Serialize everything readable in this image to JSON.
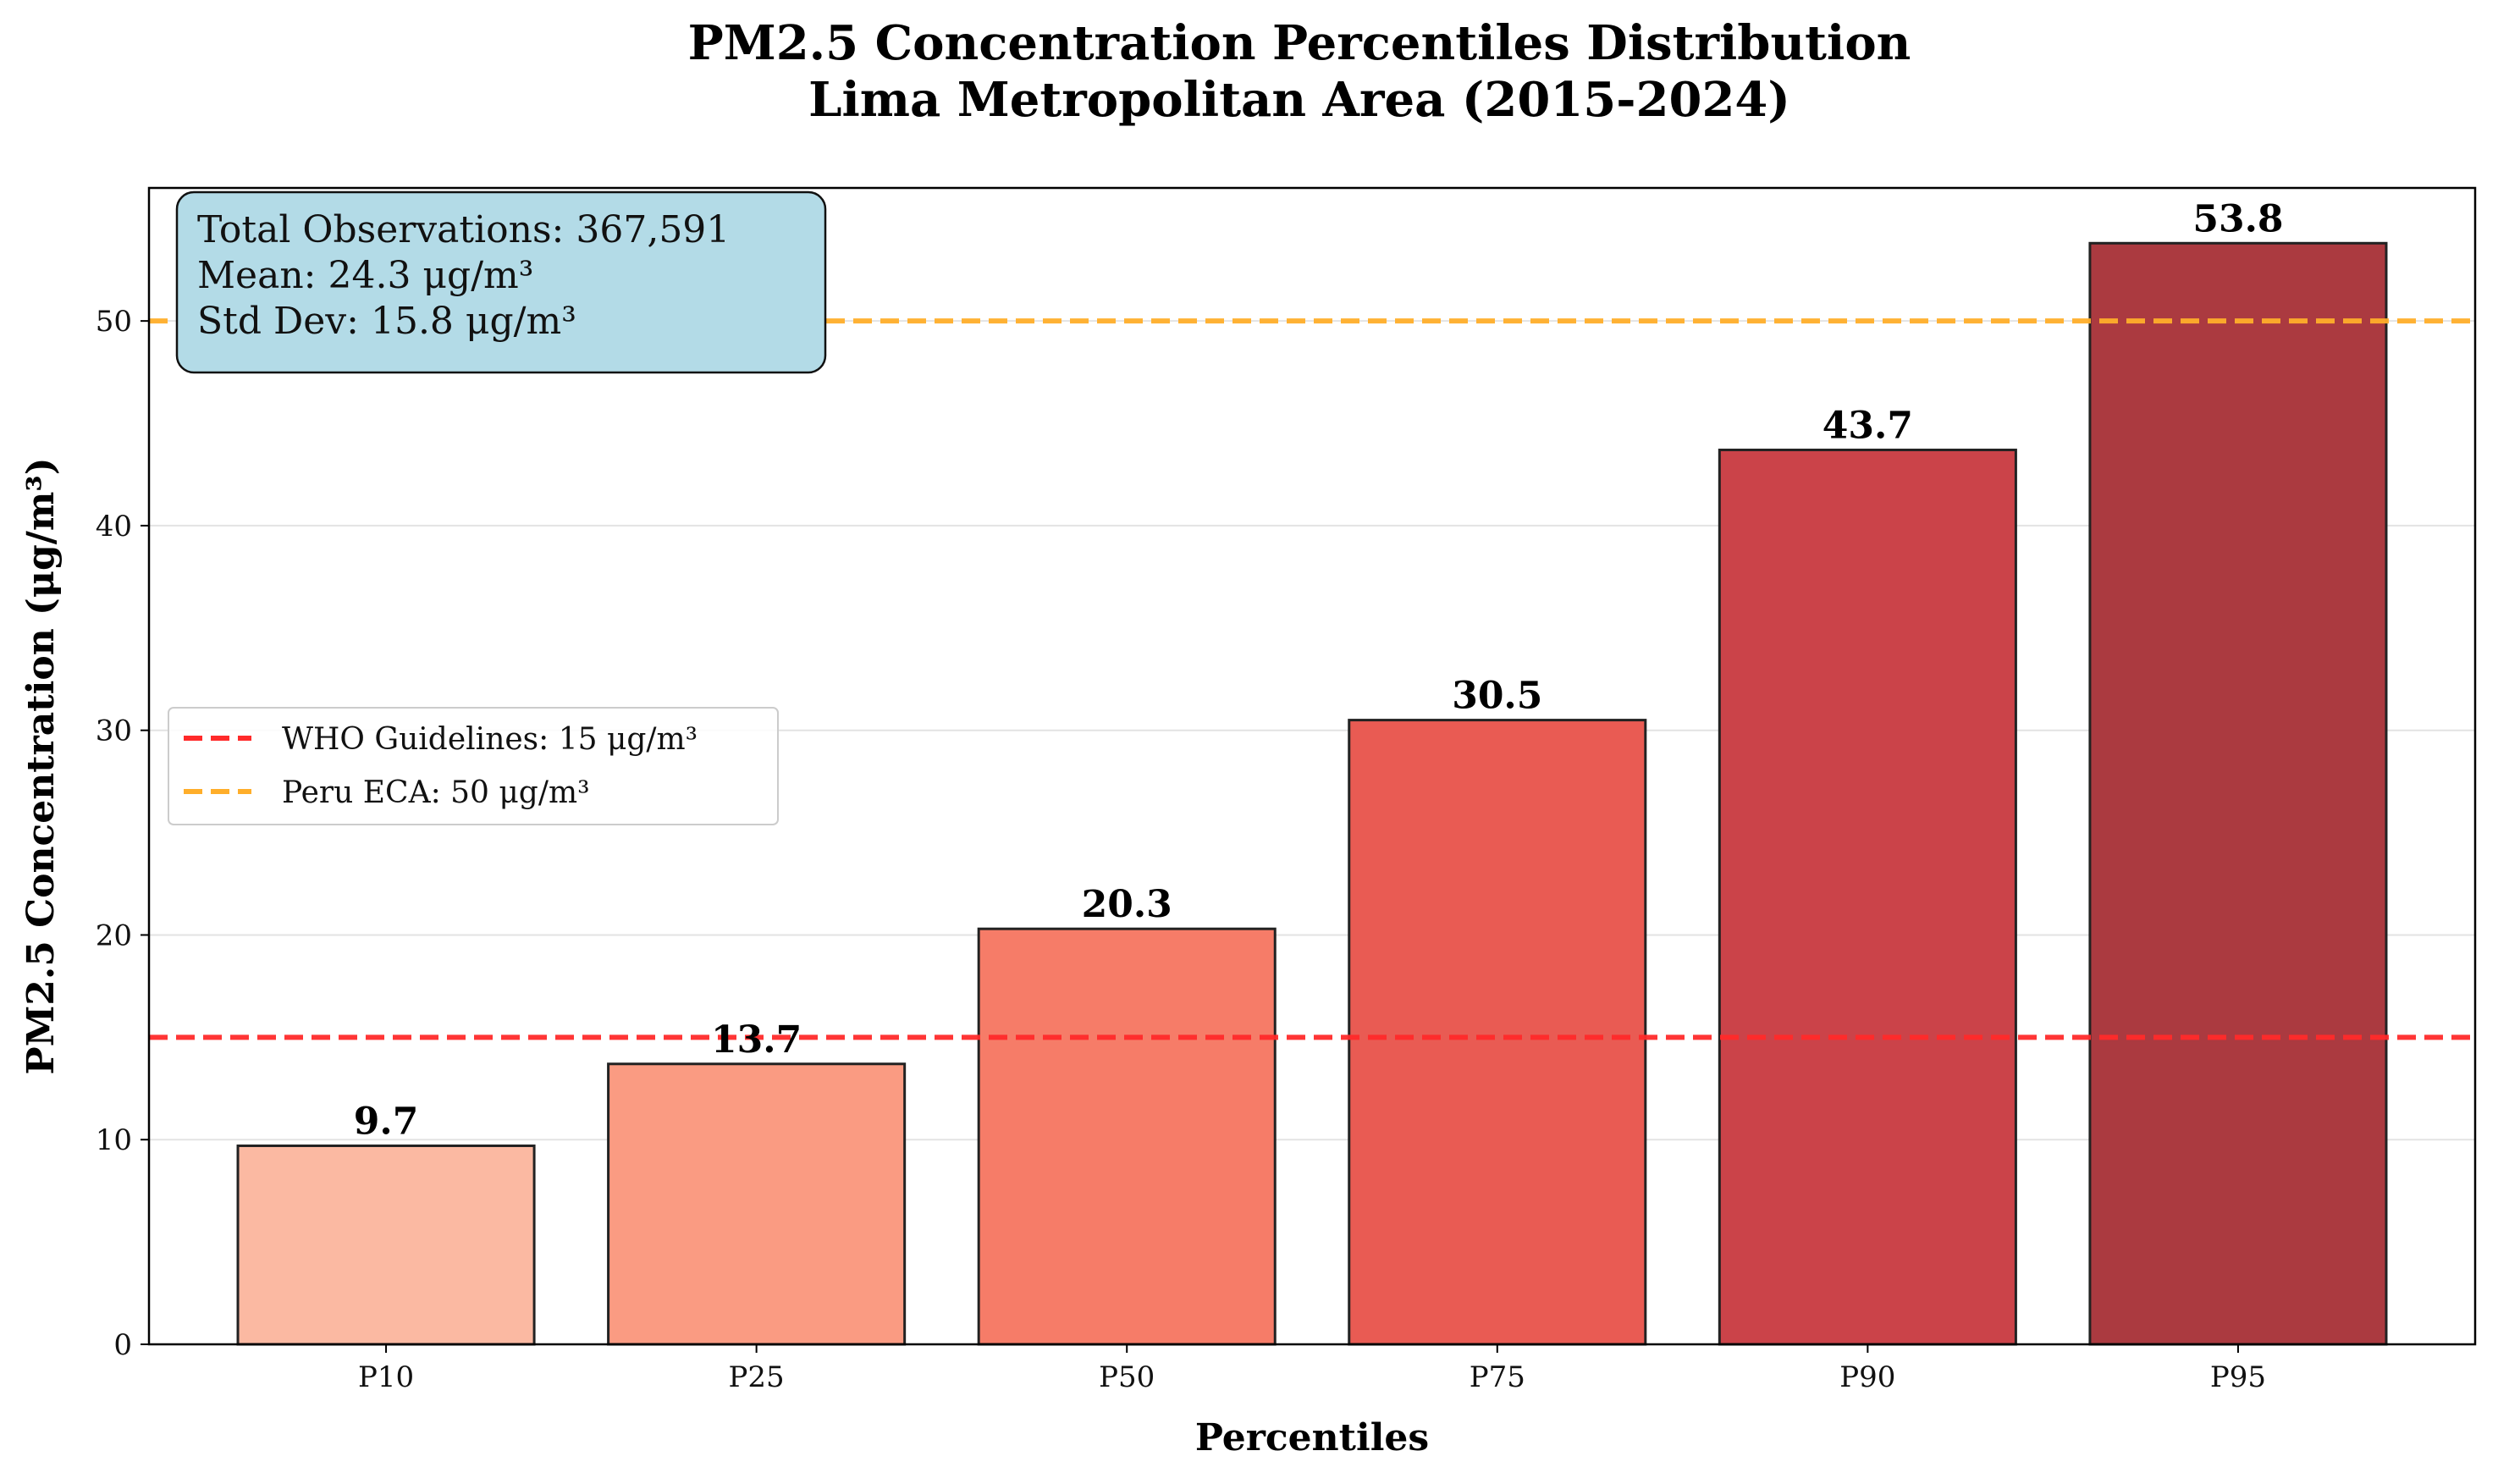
{
  "chart_data": {
    "type": "bar",
    "title_line1": "PM2.5 Concentration Percentiles Distribution",
    "title_line2": "Lima Metropolitan Area (2015-2024)",
    "xlabel": "Percentiles",
    "ylabel": "PM2.5 Concentration (μg/m³)",
    "categories": [
      "P10",
      "P25",
      "P50",
      "P75",
      "P90",
      "P95"
    ],
    "values": [
      9.7,
      13.7,
      20.3,
      30.5,
      43.7,
      53.8
    ],
    "value_labels": [
      "9.7",
      "13.7",
      "20.3",
      "30.5",
      "43.7",
      "53.8"
    ],
    "bar_colors": [
      "#fbb9a2",
      "#fa9b82",
      "#f67c68",
      "#e95b53",
      "#cb4349",
      "#ab3a40"
    ],
    "ylim": [
      0,
      56.5
    ],
    "yticks": [
      0,
      10,
      20,
      30,
      40,
      50
    ],
    "grid": "horizontal",
    "reference_lines": [
      {
        "name": "WHO Guidelines: 15 μg/m³",
        "value": 15,
        "color": "#ff2a2a"
      },
      {
        "name": "Peru ECA: 50 μg/m³",
        "value": 50,
        "color": "#ffae2a"
      }
    ],
    "legend_placement": "center-left",
    "stats_box": {
      "color": "#b3dbe7",
      "lines": [
        "Total Observations: 367,591",
        "Mean: 24.3 μg/m³",
        "Std Dev: 15.8 μg/m³"
      ]
    }
  }
}
